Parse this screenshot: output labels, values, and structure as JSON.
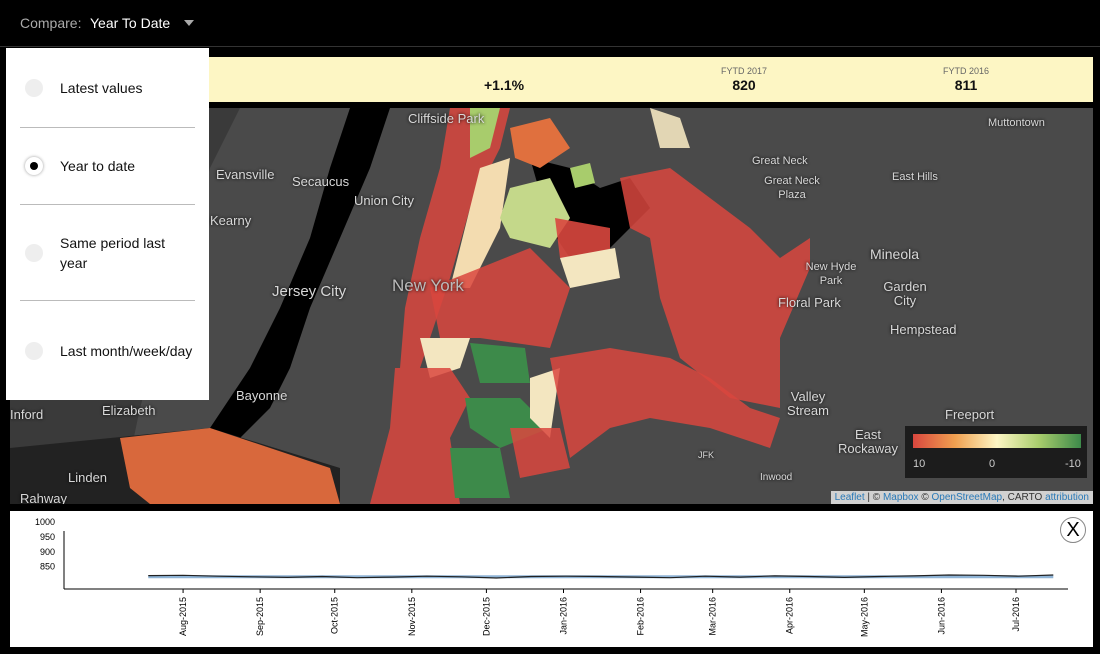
{
  "topbar": {
    "compare_label": "Compare:",
    "compare_value": "Year To Date"
  },
  "summary": {
    "change": "+1.1%",
    "cols": [
      {
        "label": "FYTD 2017",
        "value": "820"
      },
      {
        "label": "FYTD 2016",
        "value": "811"
      }
    ]
  },
  "menu": {
    "options": [
      {
        "label": "Latest values",
        "selected": false
      },
      {
        "label": "Year to date",
        "selected": true
      },
      {
        "label": "Same period last year",
        "selected": false
      },
      {
        "label": "Last month/week/day",
        "selected": false
      }
    ]
  },
  "map": {
    "places": [
      "Cliffside Park",
      "Secaucus",
      "Union City",
      "Kearny",
      "Jersey City",
      "New York",
      "Bayonne",
      "Elizabeth",
      "Linden",
      "Great Neck",
      "Great Neck Plaza",
      "East Hills",
      "Muttontown",
      "Mineola",
      "New Hyde Park",
      "Floral Park",
      "Garden City",
      "Hempstead",
      "Valley Stream",
      "Freeport",
      "East Rockaway",
      "Inwood",
      "JFK",
      "Rahway",
      "Evansville",
      "Inford"
    ],
    "legend": {
      "labels": [
        "10",
        "0",
        "-10"
      ],
      "colors": [
        "#d9473e",
        "#f0a050",
        "#fdf6c4",
        "#a8cc6c",
        "#3d8a4a"
      ]
    },
    "attribution": {
      "leaflet": "Leaflet",
      "sep": " | © ",
      "mapbox": "Mapbox",
      "sep2": " © ",
      "osm": "OpenStreetMap",
      "carto": ", CARTO ",
      "attr": "attribution"
    }
  },
  "chart_data": {
    "type": "line",
    "yticks": [
      "1000",
      "950",
      "900",
      "850"
    ],
    "ylim": [
      775,
      1000
    ],
    "xticks": [
      "Aug-2015",
      "Sep-2015",
      "Oct-2015",
      "Nov-2015",
      "Dec-2015",
      "Jan-2016",
      "Feb-2016",
      "Mar-2016",
      "Apr-2016",
      "May-2016",
      "Jun-2016",
      "Jul-2016"
    ],
    "x": [
      "2015-07-18",
      "2015-08-01",
      "2015-08-15",
      "2015-08-29",
      "2015-09-12",
      "2015-09-26",
      "2015-10-10",
      "2015-10-24",
      "2015-11-07",
      "2015-11-21",
      "2015-12-05",
      "2015-12-19",
      "2016-01-02",
      "2016-01-16",
      "2016-01-30",
      "2016-02-13",
      "2016-02-27",
      "2016-03-12",
      "2016-03-26",
      "2016-04-09",
      "2016-04-23",
      "2016-05-07",
      "2016-05-21",
      "2016-06-04",
      "2016-06-18",
      "2016-07-02",
      "2016-07-16"
    ],
    "series": [
      {
        "color": "#222222",
        "values": [
          820,
          821,
          818,
          816,
          814,
          817,
          813,
          815,
          818,
          816,
          812,
          817,
          818,
          817,
          815,
          813,
          818,
          815,
          819,
          817,
          814,
          817,
          819,
          822,
          821,
          818,
          822
        ]
      },
      {
        "color": "#8fb4d6",
        "values": [
          816,
          816,
          816,
          816,
          816,
          816,
          816,
          816,
          816,
          816,
          816,
          816,
          816,
          816,
          816,
          816,
          816,
          816,
          816,
          816,
          816,
          816,
          816,
          816,
          816,
          816,
          816
        ]
      }
    ],
    "close_label": "X"
  }
}
